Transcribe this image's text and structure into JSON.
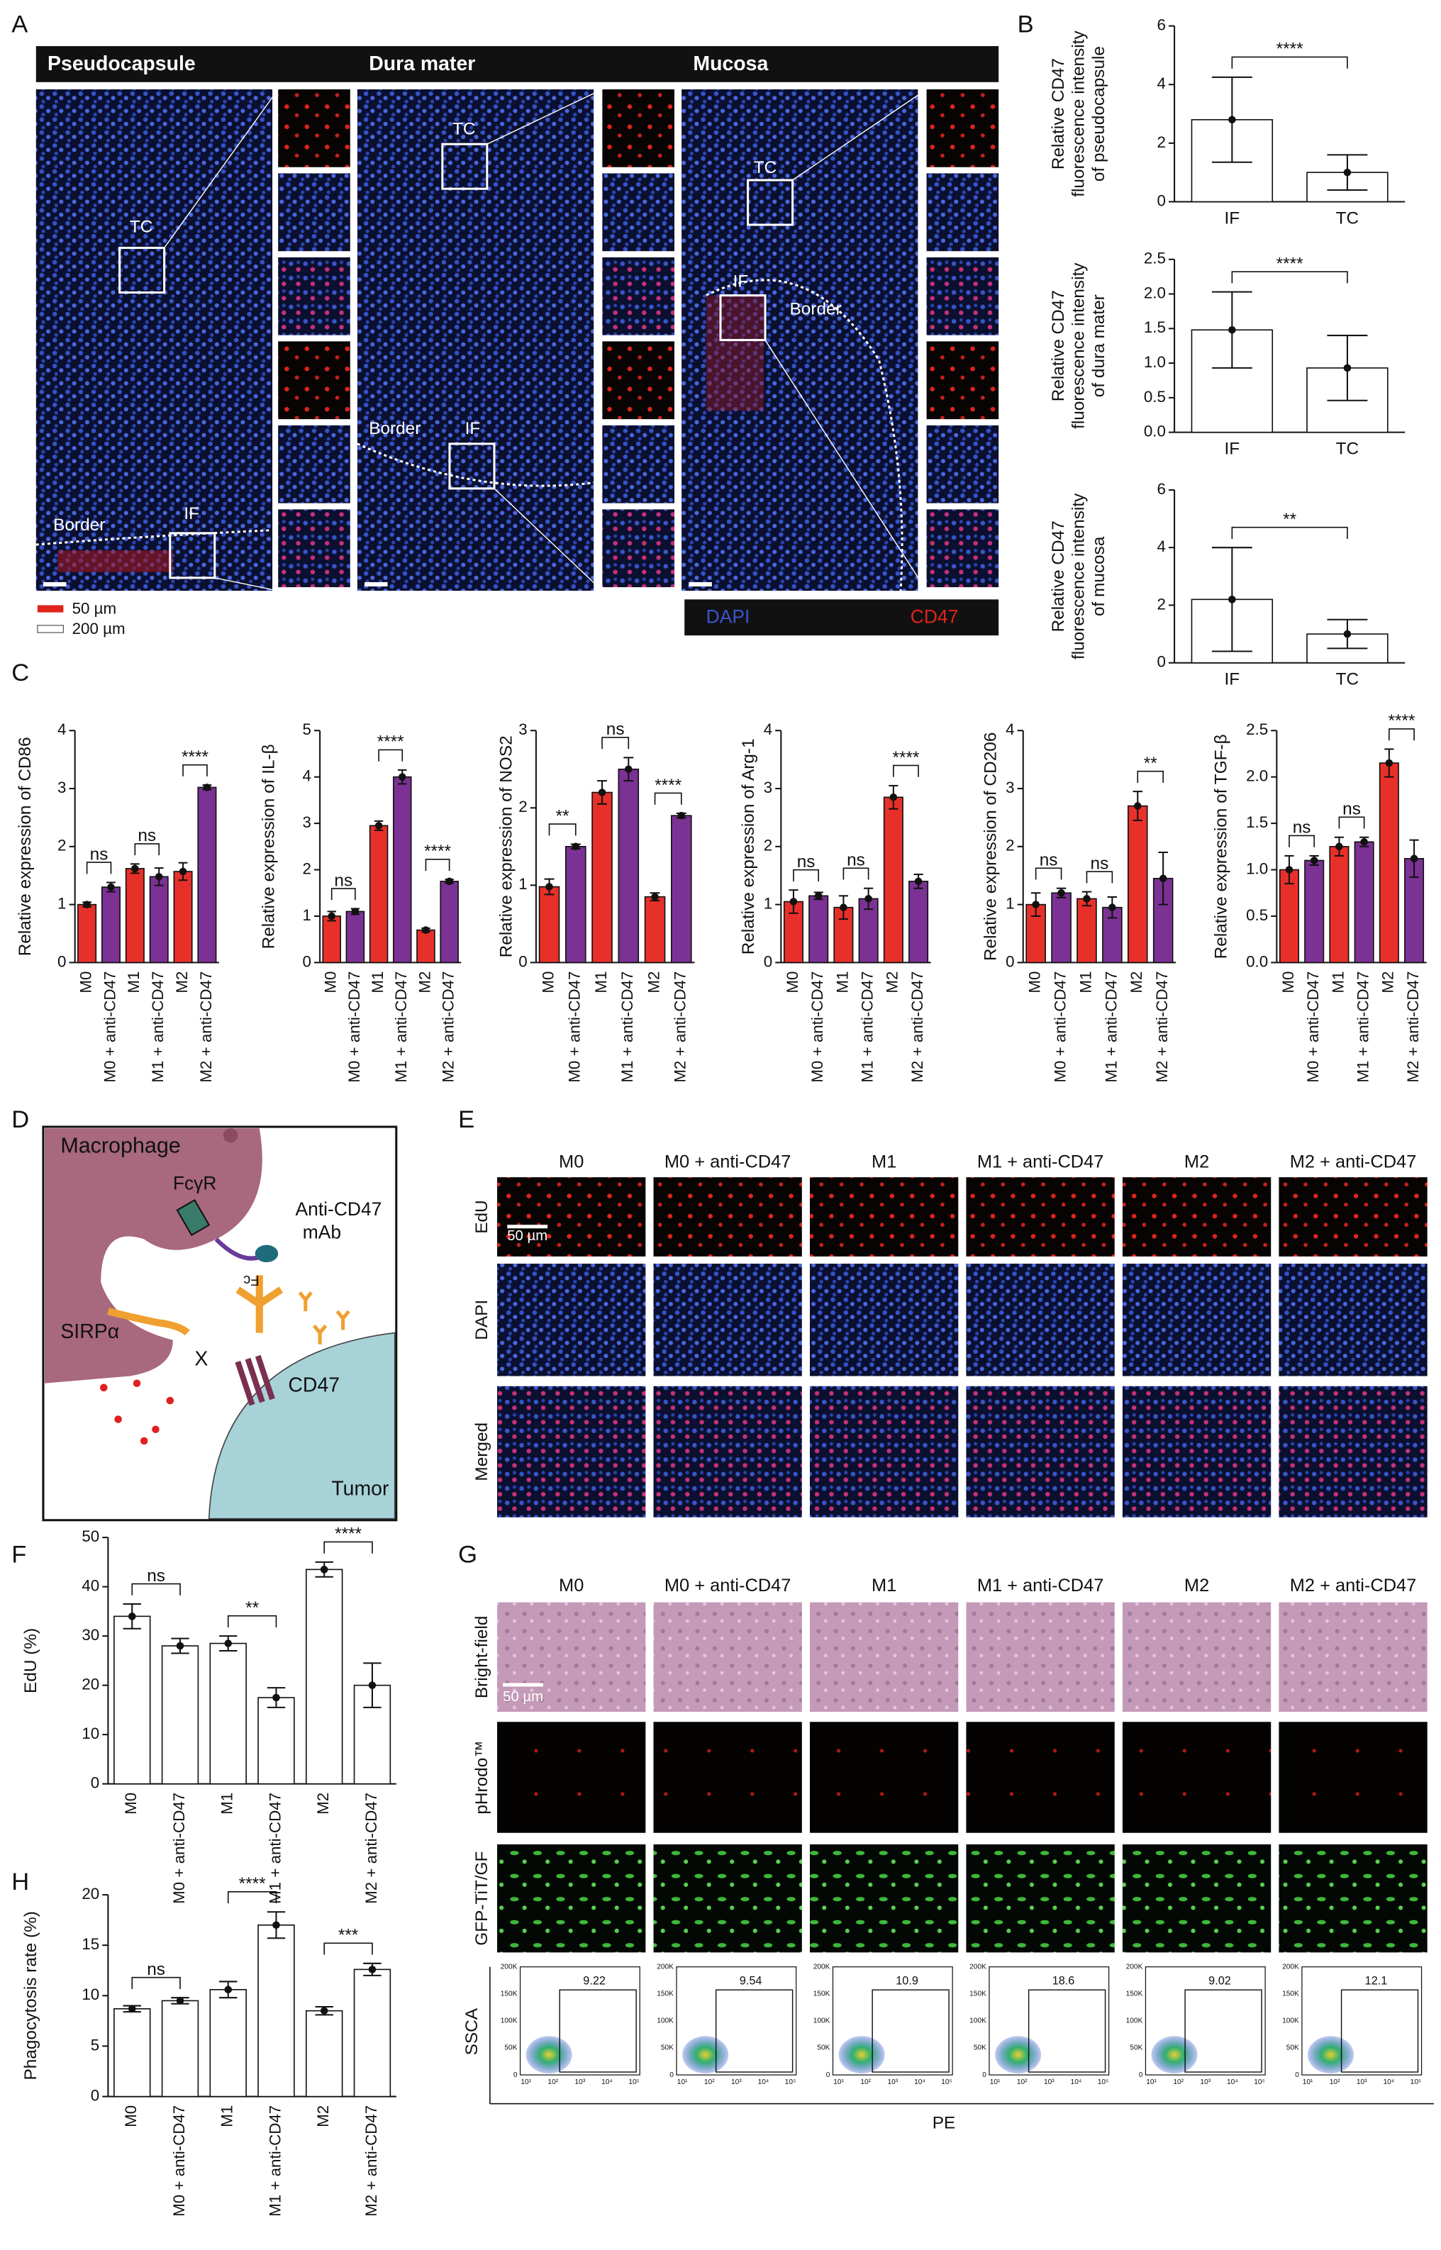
{
  "panel_labels": [
    "A",
    "B",
    "C",
    "D",
    "E",
    "F",
    "G",
    "H"
  ],
  "panel_a": {
    "titles": [
      "Pseudocapsule",
      "Dura mater",
      "Mucosa"
    ],
    "annotations": [
      [
        "TC",
        "IF",
        "Border"
      ],
      [
        "TC",
        "IF",
        "Border"
      ],
      [
        "TC",
        "IF",
        "Border"
      ]
    ],
    "scale_bars": [
      "50 µm",
      "200 µm"
    ],
    "channels": [
      "DAPI",
      "CD47"
    ]
  },
  "panel_d": {
    "macrophage": "Macrophage",
    "receptor": "FcγR",
    "antibody": [
      "Anti-CD47",
      "mAb"
    ],
    "fc": "Fc",
    "sirpa": "SIRPα",
    "block": "X",
    "cd47": "CD47",
    "tumor": "Tumor"
  },
  "panel_e": {
    "columns": [
      "M0",
      "M0 + anti-CD47",
      "M1",
      "M1 + anti-CD47",
      "M2",
      "M2 + anti-CD47"
    ],
    "rows": [
      "EdU",
      "DAPI",
      "Merged"
    ],
    "scale_bar": "50 µm"
  },
  "panel_g": {
    "columns": [
      "M0",
      "M0 + anti-CD47",
      "M1",
      "M1 + anti-CD47",
      "M2",
      "M2 + anti-CD47"
    ],
    "rows": [
      "Bright-field",
      "pHrodo™",
      "GFP-TiT/GF"
    ],
    "scale_bar": "50 µm",
    "flow": {
      "gates": [
        "9.22",
        "9.54",
        "10.9",
        "18.6",
        "9.02",
        "12.1"
      ],
      "y_label": "SSCA",
      "x_label": "PE",
      "yticks": [
        "200K",
        "150K",
        "100K",
        "50K",
        "0"
      ],
      "xticks": [
        "10¹",
        "10²",
        "10³",
        "10⁴",
        "10⁵"
      ]
    }
  },
  "chart_data": [
    {
      "type": "bar",
      "y_label": [
        "Relative CD47",
        "fluorescence intensity",
        "of pseudocapsule"
      ],
      "categories": [
        "IF",
        "TC"
      ],
      "values": [
        2.8,
        1.0
      ],
      "errors": [
        1.45,
        0.6
      ],
      "colors": [
        "#ffffff",
        "#ffffff"
      ],
      "ylim": [
        0,
        6
      ],
      "yticks": [
        0,
        2,
        4,
        6
      ],
      "significance": [
        "****"
      ]
    },
    {
      "type": "bar",
      "y_label": [
        "Relative CD47",
        "fluorescence intensity",
        "of dura mater"
      ],
      "categories": [
        "IF",
        "TC"
      ],
      "values": [
        1.48,
        0.93
      ],
      "errors": [
        0.55,
        0.47
      ],
      "colors": [
        "#ffffff",
        "#ffffff"
      ],
      "ylim": [
        0,
        2.5
      ],
      "yticks": [
        {
          "value": 0,
          "label": "0.0"
        },
        0.5,
        {
          "value": 1,
          "label": "1.0"
        },
        1.5,
        {
          "value": 2,
          "label": "2.0"
        },
        2.5
      ],
      "significance": [
        "****"
      ]
    },
    {
      "type": "bar",
      "y_label": [
        "Relative CD47",
        "fluorescence intensity",
        "of mucosa"
      ],
      "categories": [
        "IF",
        "TC"
      ],
      "values": [
        2.2,
        1.0
      ],
      "errors": [
        1.8,
        0.5
      ],
      "colors": [
        "#ffffff",
        "#ffffff"
      ],
      "ylim": [
        0,
        6
      ],
      "yticks": [
        0,
        2,
        4,
        6
      ],
      "significance": [
        "**"
      ]
    },
    {
      "type": "bar",
      "y_label": [
        "Relative expression of CD86"
      ],
      "categories": [
        "M0",
        "M0 + anti-CD47",
        "M1",
        "M1 + anti-CD47",
        "M2",
        "M2 + anti-CD47"
      ],
      "values": [
        1.0,
        1.3,
        1.62,
        1.48,
        1.57,
        3.02
      ],
      "errors": [
        0.04,
        0.08,
        0.08,
        0.15,
        0.15,
        0.04
      ],
      "colors": [
        "#e8302a",
        "#7b3294",
        "#e8302a",
        "#7b3294",
        "#e8302a",
        "#7b3294"
      ],
      "ylim": [
        0,
        4
      ],
      "yticks": [
        0,
        1,
        2,
        3,
        4
      ],
      "significance": [
        "ns",
        "ns",
        "****"
      ]
    },
    {
      "type": "bar",
      "y_label": [
        "Relative expression of IL-β"
      ],
      "categories": [
        "M0",
        "M0 + anti-CD47",
        "M1",
        "M1 + anti-CD47",
        "M2",
        "M2 + anti-CD47"
      ],
      "values": [
        1.0,
        1.1,
        2.95,
        4.0,
        0.7,
        1.75
      ],
      "errors": [
        0.1,
        0.06,
        0.1,
        0.15,
        0.04,
        0.04
      ],
      "colors": [
        "#e8302a",
        "#7b3294",
        "#e8302a",
        "#7b3294",
        "#e8302a",
        "#7b3294"
      ],
      "ylim": [
        0,
        5
      ],
      "yticks": [
        0,
        1,
        2,
        3,
        4,
        5
      ],
      "significance": [
        "ns",
        "****",
        "****"
      ]
    },
    {
      "type": "bar",
      "y_label": [
        "Relative expression of NOS2"
      ],
      "categories": [
        "M0",
        "M0 + anti-CD47",
        "M1",
        "M1 + anti-CD47",
        "M2",
        "M2 + anti-CD47"
      ],
      "values": [
        0.98,
        1.5,
        2.2,
        2.5,
        0.85,
        1.9
      ],
      "errors": [
        0.1,
        0.03,
        0.15,
        0.15,
        0.05,
        0.03
      ],
      "colors": [
        "#e8302a",
        "#7b3294",
        "#e8302a",
        "#7b3294",
        "#e8302a",
        "#7b3294"
      ],
      "ylim": [
        0,
        3
      ],
      "yticks": [
        0,
        1,
        2,
        3
      ],
      "significance": [
        "**",
        "ns",
        "****"
      ]
    },
    {
      "type": "bar",
      "y_label": [
        "Relative expression of Arg-1"
      ],
      "categories": [
        "M0",
        "M0 + anti-CD47",
        "M1",
        "M1 + anti-CD47",
        "M2",
        "M2 + anti-CD47"
      ],
      "values": [
        1.05,
        1.15,
        0.95,
        1.1,
        2.85,
        1.4
      ],
      "errors": [
        0.2,
        0.06,
        0.2,
        0.18,
        0.2,
        0.12
      ],
      "colors": [
        "#e8302a",
        "#7b3294",
        "#e8302a",
        "#7b3294",
        "#e8302a",
        "#7b3294"
      ],
      "ylim": [
        0,
        4
      ],
      "yticks": [
        0,
        1,
        2,
        3,
        4
      ],
      "significance": [
        "ns",
        "ns",
        "****"
      ]
    },
    {
      "type": "bar",
      "y_label": [
        "Relative expression of CD206"
      ],
      "categories": [
        "M0",
        "M0 + anti-CD47",
        "M1",
        "M1 + anti-CD47",
        "M2",
        "M2 + anti-CD47"
      ],
      "values": [
        1.0,
        1.2,
        1.1,
        0.95,
        2.7,
        1.45
      ],
      "errors": [
        0.2,
        0.08,
        0.12,
        0.18,
        0.25,
        0.45
      ],
      "colors": [
        "#e8302a",
        "#7b3294",
        "#e8302a",
        "#7b3294",
        "#e8302a",
        "#7b3294"
      ],
      "ylim": [
        0,
        4
      ],
      "yticks": [
        0,
        1,
        2,
        3,
        4
      ],
      "significance": [
        "ns",
        "ns",
        "**"
      ]
    },
    {
      "type": "bar",
      "y_label": [
        "Relative expression of TGF-β"
      ],
      "categories": [
        "M0",
        "M0 + anti-CD47",
        "M1",
        "M1 + anti-CD47",
        "M2",
        "M2 + anti-CD47"
      ],
      "values": [
        1.0,
        1.1,
        1.25,
        1.3,
        2.15,
        1.12
      ],
      "errors": [
        0.15,
        0.05,
        0.1,
        0.05,
        0.15,
        0.2
      ],
      "colors": [
        "#e8302a",
        "#7b3294",
        "#e8302a",
        "#7b3294",
        "#e8302a",
        "#7b3294"
      ],
      "ylim": [
        0,
        2.5
      ],
      "yticks": [
        {
          "value": 0,
          "label": "0.0"
        },
        0.5,
        {
          "value": 1,
          "label": "1.0"
        },
        1.5,
        {
          "value": 2,
          "label": "2.0"
        },
        2.5
      ],
      "significance": [
        "ns",
        "ns",
        "****"
      ]
    },
    {
      "type": "bar",
      "y_label": [
        "EdU (%)"
      ],
      "categories": [
        "M0",
        "M0 + anti-CD47",
        "M1",
        "M1 + anti-CD47",
        "M2",
        "M2 + anti-CD47"
      ],
      "values": [
        34,
        28,
        28.5,
        17.5,
        43.5,
        20
      ],
      "errors": [
        2.5,
        1.5,
        1.5,
        2,
        1.5,
        4.5
      ],
      "colors": [
        "#ffffff",
        "#ffffff",
        "#ffffff",
        "#ffffff",
        "#ffffff",
        "#ffffff"
      ],
      "ylim": [
        0,
        50
      ],
      "yticks": [
        0,
        10,
        20,
        30,
        40,
        50
      ],
      "significance": [
        "ns",
        "**",
        "****"
      ]
    },
    {
      "type": "bar",
      "y_label": [
        "Phagocytosis rate (%)"
      ],
      "categories": [
        "M0",
        "M0 + anti-CD47",
        "M1",
        "M1 + anti-CD47",
        "M2",
        "M2 + anti-CD47"
      ],
      "values": [
        8.7,
        9.5,
        10.6,
        17,
        8.5,
        12.6
      ],
      "errors": [
        0.3,
        0.3,
        0.8,
        1.3,
        0.4,
        0.6
      ],
      "colors": [
        "#ffffff",
        "#ffffff",
        "#ffffff",
        "#ffffff",
        "#ffffff",
        "#ffffff"
      ],
      "ylim": [
        0,
        20
      ],
      "yticks": [
        0,
        5,
        10,
        15,
        20
      ],
      "significance": [
        "ns",
        "****",
        "***"
      ]
    }
  ]
}
